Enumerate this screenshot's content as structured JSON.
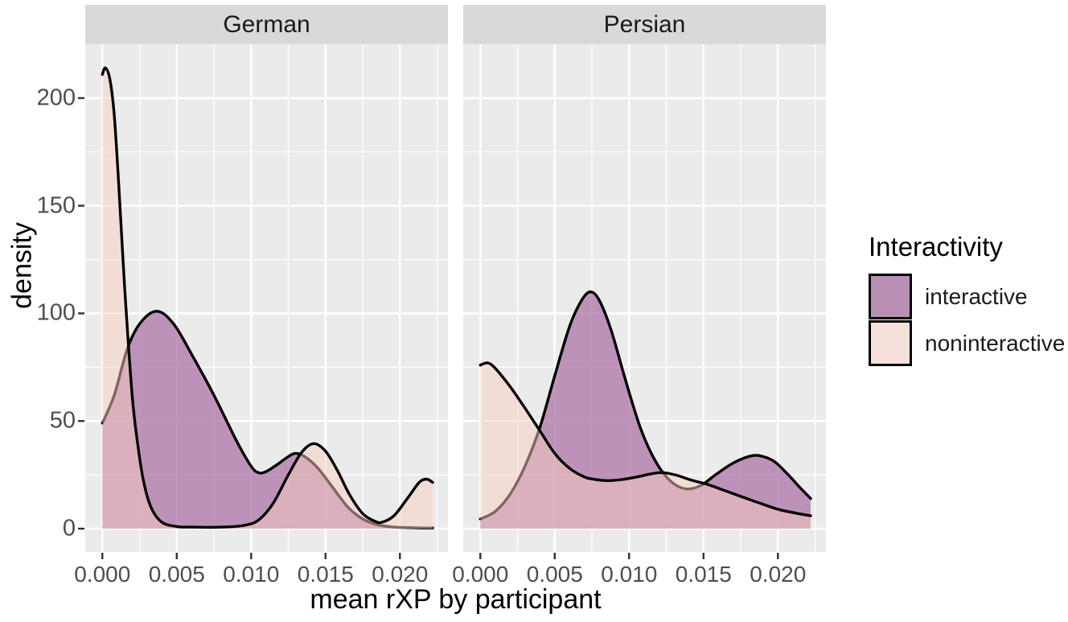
{
  "chart_data": {
    "type": "area",
    "subtype": "overlaid kernel density estimates, faceted",
    "title": "",
    "xlabel": "mean rXP by participant",
    "ylabel": "density",
    "x_tick_labels": [
      "0.000",
      "0.005",
      "0.010",
      "0.015",
      "0.020"
    ],
    "x_tick_values": [
      0,
      0.005,
      0.01,
      0.015,
      0.02
    ],
    "x_minor_values": [
      0.0025,
      0.0075,
      0.0125,
      0.0175,
      0.0225
    ],
    "y_tick_labels": [
      "0",
      "50",
      "100",
      "150",
      "200"
    ],
    "y_tick_values": [
      0,
      50,
      100,
      150,
      200
    ],
    "y_minor_values": [
      25,
      75,
      125,
      175
    ],
    "xlim": [
      -0.00115,
      0.02325
    ],
    "ylim": [
      -10.8,
      225.0
    ],
    "x_data_range": [
      0,
      0.0222
    ],
    "grid": "on",
    "legend_position": "right",
    "facets": [
      {
        "label": "German",
        "series": [
          {
            "name": "interactive",
            "points": [
              [
                0,
                49
              ],
              [
                0.0008,
                62
              ],
              [
                0.0017,
                84
              ],
              [
                0.0026,
                96
              ],
              [
                0.0037,
                101
              ],
              [
                0.0048,
                95
              ],
              [
                0.006,
                81
              ],
              [
                0.0075,
                62
              ],
              [
                0.009,
                41
              ],
              [
                0.01,
                29
              ],
              [
                0.0105,
                26
              ],
              [
                0.011,
                26.5
              ],
              [
                0.0118,
                30
              ],
              [
                0.0125,
                33.5
              ],
              [
                0.013,
                35
              ],
              [
                0.0136,
                33.5
              ],
              [
                0.0145,
                28
              ],
              [
                0.0155,
                19
              ],
              [
                0.0165,
                10
              ],
              [
                0.0175,
                4.5
              ],
              [
                0.0185,
                1.8
              ],
              [
                0.0195,
                0.8
              ],
              [
                0.021,
                0.4
              ],
              [
                0.0222,
                0.3
              ]
            ]
          },
          {
            "name": "noninteractive",
            "points": [
              [
                0,
                211
              ],
              [
                0.0002,
                214
              ],
              [
                0.0005,
                209
              ],
              [
                0.0008,
                192
              ],
              [
                0.0011,
                160
              ],
              [
                0.0015,
                112
              ],
              [
                0.002,
                62
              ],
              [
                0.0024,
                38
              ],
              [
                0.0028,
                21
              ],
              [
                0.0033,
                9.5
              ],
              [
                0.004,
                3
              ],
              [
                0.005,
                1
              ],
              [
                0.006,
                0.7
              ],
              [
                0.008,
                0.7
              ],
              [
                0.0095,
                1.5
              ],
              [
                0.0105,
                4
              ],
              [
                0.0115,
                12
              ],
              [
                0.0125,
                25
              ],
              [
                0.0134,
                35.5
              ],
              [
                0.0142,
                39.5
              ],
              [
                0.015,
                36
              ],
              [
                0.0158,
                27
              ],
              [
                0.0166,
                16
              ],
              [
                0.0175,
                7
              ],
              [
                0.0183,
                3.5
              ],
              [
                0.0188,
                3
              ],
              [
                0.0196,
                6
              ],
              [
                0.0205,
                14
              ],
              [
                0.0213,
                21.5
              ],
              [
                0.0218,
                23
              ],
              [
                0.0222,
                21.5
              ]
            ]
          }
        ]
      },
      {
        "label": "Persian",
        "series": [
          {
            "name": "interactive",
            "points": [
              [
                0,
                4.5
              ],
              [
                0.001,
                8
              ],
              [
                0.002,
                16
              ],
              [
                0.003,
                29
              ],
              [
                0.004,
                47
              ],
              [
                0.005,
                71
              ],
              [
                0.006,
                94
              ],
              [
                0.0068,
                106
              ],
              [
                0.0074,
                110
              ],
              [
                0.008,
                106
              ],
              [
                0.0088,
                92
              ],
              [
                0.0098,
                68
              ],
              [
                0.0108,
                46
              ],
              [
                0.0118,
                31
              ],
              [
                0.0128,
                22
              ],
              [
                0.0138,
                18.5
              ],
              [
                0.0148,
                20
              ],
              [
                0.0158,
                25
              ],
              [
                0.017,
                30.5
              ],
              [
                0.0182,
                33.8
              ],
              [
                0.019,
                33.5
              ],
              [
                0.0198,
                31
              ],
              [
                0.0207,
                25
              ],
              [
                0.0215,
                19
              ],
              [
                0.0222,
                14
              ]
            ]
          },
          {
            "name": "noninteractive",
            "points": [
              [
                0,
                76
              ],
              [
                0.0005,
                77
              ],
              [
                0.001,
                74.5
              ],
              [
                0.002,
                66
              ],
              [
                0.003,
                56
              ],
              [
                0.004,
                45.5
              ],
              [
                0.005,
                35
              ],
              [
                0.006,
                28
              ],
              [
                0.007,
                24
              ],
              [
                0.0076,
                23
              ],
              [
                0.0085,
                22.3
              ],
              [
                0.0095,
                22.8
              ],
              [
                0.0105,
                24
              ],
              [
                0.0115,
                25.5
              ],
              [
                0.0123,
                26
              ],
              [
                0.0132,
                24.8
              ],
              [
                0.0142,
                22.5
              ],
              [
                0.0153,
                20.5
              ],
              [
                0.0163,
                18
              ],
              [
                0.0175,
                15
              ],
              [
                0.0188,
                11.8
              ],
              [
                0.02,
                9
              ],
              [
                0.021,
                7.5
              ],
              [
                0.0222,
                6
              ]
            ]
          }
        ]
      }
    ],
    "legend": {
      "title": "Interactivity",
      "entries": [
        {
          "label": "interactive",
          "swatch": "#b98fb4"
        },
        {
          "label": "noninteractive",
          "swatch": "#f5e1da"
        }
      ]
    },
    "style": {
      "panel_bg": "#ebebeb",
      "strip_bg": "#d9d9d9",
      "grid_color": "#ffffff",
      "tick_color": "#333333",
      "tick_label_color": "#4d4d4d",
      "line_color": "#000000",
      "interactive_fill_base": "#ae74a7",
      "interactive_fill_alpha": 0.75,
      "noninteractive_fill_base": "#f9cdc1",
      "noninteractive_fill_alpha": 0.5
    }
  }
}
